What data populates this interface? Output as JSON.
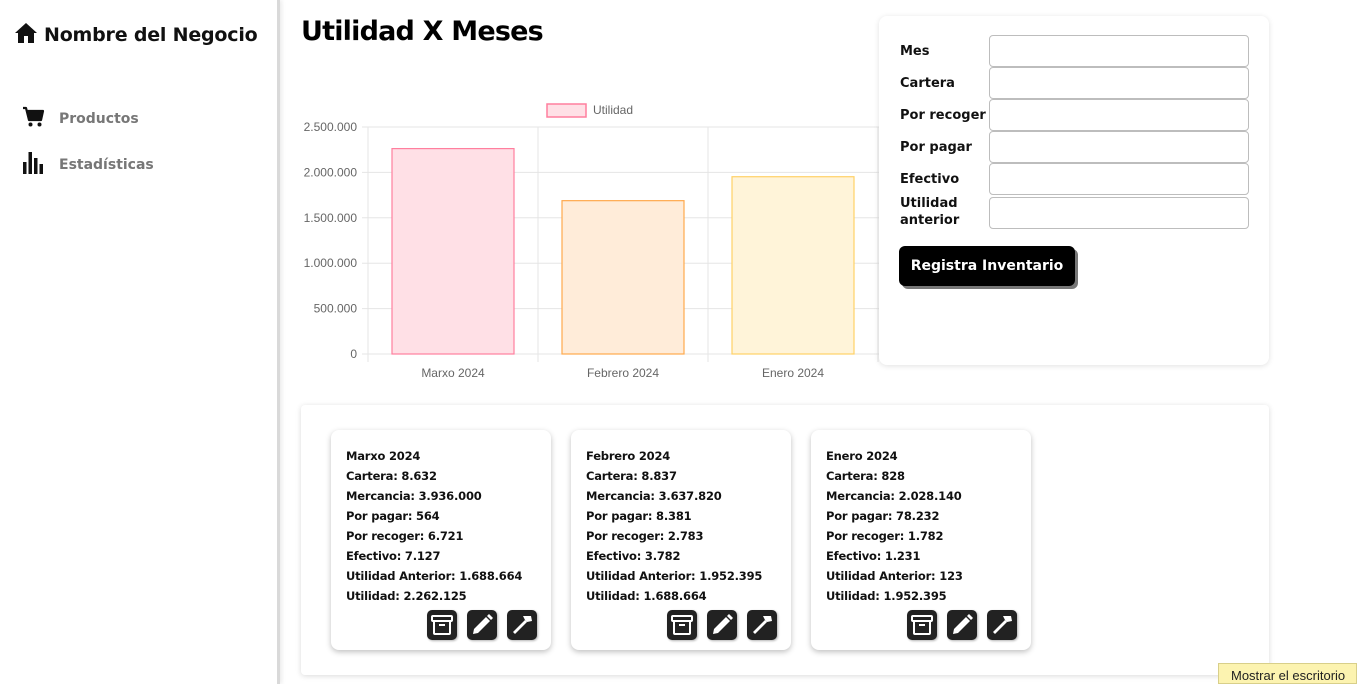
{
  "sidebar": {
    "brand": {
      "icon": "home-icon",
      "title": "Nombre del Negocio"
    },
    "items": [
      {
        "icon": "cart-icon",
        "label": "Productos"
      },
      {
        "icon": "bar-chart-icon",
        "label": "Estadísticas"
      }
    ]
  },
  "page": {
    "title": "Utilidad X Meses"
  },
  "chart_data": {
    "type": "bar",
    "categories": [
      "Marxo 2024",
      "Febrero 2024",
      "Enero 2024"
    ],
    "series": [
      {
        "name": "Utilidad",
        "values": [
          2262125,
          1688664,
          1952395
        ]
      }
    ],
    "legend": "top-center",
    "ylim": [
      0,
      2500000
    ],
    "yticks": [
      "0",
      "500.000",
      "1.000.000",
      "1.500.000",
      "2.000.000",
      "2.500.000"
    ],
    "grid": true,
    "bar_colors": [
      {
        "fill": "#ffe0e6",
        "stroke": "#ff7f9e"
      },
      {
        "fill": "#ffecd9",
        "stroke": "#ffa94d"
      },
      {
        "fill": "#fff4d9",
        "stroke": "#ffd166"
      }
    ],
    "legend_color": {
      "fill": "#ffe0e6",
      "stroke": "#ff7f9e"
    }
  },
  "form": {
    "fields": [
      {
        "label": "Mes",
        "value": ""
      },
      {
        "label": "Cartera",
        "value": ""
      },
      {
        "label": "Por recoger",
        "value": ""
      },
      {
        "label": "Por pagar",
        "value": ""
      },
      {
        "label": "Efectivo",
        "value": ""
      },
      {
        "label": "Utilidad anterior",
        "value": ""
      }
    ],
    "submit_label": "Registra Inventario"
  },
  "records": [
    {
      "lines": [
        "Marxo 2024",
        "Cartera: 8.632",
        "Mercancia: 3.936.000",
        "Por pagar: 564",
        "Por recoger: 6.721",
        "Efectivo: 7.127",
        "Utilidad Anterior: 1.688.664",
        "Utilidad: 2.262.125"
      ],
      "actions": [
        "archive-icon",
        "pencil-icon",
        "hammer-icon"
      ]
    },
    {
      "lines": [
        "Febrero 2024",
        "Cartera: 8.837",
        "Mercancia: 3.637.820",
        "Por pagar: 8.381",
        "Por recoger: 2.783",
        "Efectivo: 3.782",
        "Utilidad Anterior: 1.952.395",
        "Utilidad: 1.688.664"
      ],
      "actions": [
        "archive-icon",
        "pencil-icon",
        "hammer-icon"
      ]
    },
    {
      "lines": [
        "Enero 2024",
        "Cartera: 828",
        "Mercancia: 2.028.140",
        "Por pagar: 78.232",
        "Por recoger: 1.782",
        "Efectivo: 1.231",
        "Utilidad Anterior: 123",
        "Utilidad: 1.952.395"
      ],
      "actions": [
        "archive-icon",
        "pencil-icon",
        "hammer-icon"
      ]
    }
  ],
  "tooltip": {
    "text": "Mostrar el escritorio"
  }
}
